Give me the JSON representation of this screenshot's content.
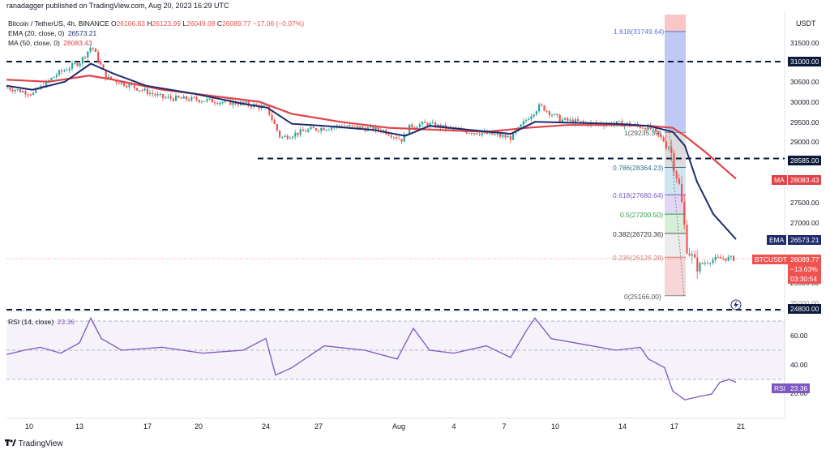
{
  "header": {
    "published": "ranadagger published on TradingView.com, Aug 20, 2023 16:29 UTC"
  },
  "legend": {
    "symbol": "Bitcoin / TetherUS, 4h, BINANCE",
    "o_label": "O",
    "o": "26106.83",
    "h_label": "H",
    "h": "26123.99",
    "l_label": "L",
    "l": "26049.08",
    "c_label": "C",
    "c": "26089.77",
    "change": "−17.06 (−0.07%)",
    "ema_label": "EMA (20, close, 0)",
    "ema_val": "26573.21",
    "ma_label": "MA (50, close, 0)",
    "ma_val": "28083.43",
    "rsi_label": "RSI (14, close)",
    "rsi_val": "23.36"
  },
  "axis": {
    "currency": "USDT",
    "price_ticks": [
      "31500.00",
      "30500.00",
      "30000.00",
      "29500.00",
      "29000.00",
      "27500.00",
      "27000.00",
      "25500.00",
      "25000.00"
    ],
    "rsi_ticks": [
      "60.00",
      "40.00",
      "20.00"
    ],
    "x_ticks": [
      "10",
      "13",
      "17",
      "20",
      "24",
      "27",
      "Aug",
      "4",
      "7",
      "10",
      "14",
      "17",
      "21"
    ]
  },
  "badges": {
    "level_31000": "31000.00",
    "level_28585": "28585.00",
    "level_24800": "24800.00",
    "ma_tag": "MA",
    "ma_price": "28083.43",
    "ema_tag": "EMA",
    "ema_price": "26573.21",
    "sym_tag": "BTCUSDT",
    "last_price": "26089.77",
    "last_pct": "−13.63%",
    "countdown": "03:30:54",
    "rsi_tag": "RSI",
    "rsi_val": "23.36"
  },
  "fib": {
    "f1618": "1.618(31749.64)",
    "f1": "1(29235.39)",
    "f0786": "0.786(28364.23)",
    "f0618": "0.618(27680.64)",
    "f05": "0.5(27200.50)",
    "f0382": "0.382(26720.36)",
    "f0236": "0.236(26126.28)",
    "f0": "0(25166.00)"
  },
  "footer": {
    "brand": "TradingView"
  },
  "colors": {
    "up": "#26a69a",
    "down": "#ef5350",
    "ema": "#1e2b6e",
    "ma": "#e0434a",
    "rsi": "#7e57c2",
    "level": "#0b1a3a"
  },
  "chart_data": {
    "type": "line",
    "title": "Bitcoin / TetherUS, 4h, BINANCE",
    "x": [
      "10",
      "13",
      "17",
      "20",
      "24",
      "27",
      "Aug",
      "4",
      "7",
      "10",
      "14",
      "17",
      "21"
    ],
    "series": [
      {
        "name": "EMA (20, close, 0)",
        "values": [
          30400,
          30500,
          30900,
          30450,
          30100,
          29800,
          29350,
          29350,
          29250,
          29400,
          29450,
          29300,
          26573
        ]
      },
      {
        "name": "MA (50, close, 0)",
        "values": [
          30550,
          30500,
          30600,
          30350,
          30100,
          29700,
          29500,
          29350,
          29300,
          29380,
          29420,
          29350,
          28083
        ]
      },
      {
        "name": "RSI (14, close)",
        "values": [
          47,
          52,
          50,
          52,
          33,
          50,
          53,
          50,
          41,
          62,
          50,
          30,
          23.36
        ]
      }
    ],
    "horizontal_levels": [
      31000,
      28585,
      24800
    ],
    "ylim": [
      24800,
      31900
    ],
    "rsi_ylim": [
      15,
      75
    ]
  }
}
